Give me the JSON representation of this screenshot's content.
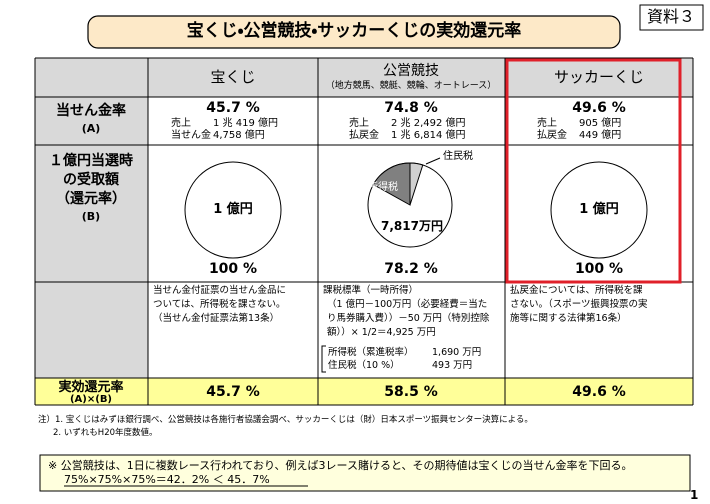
{
  "header": {
    "title": "宝くじ・公営競技・サッカーくじの実効還元率",
    "doc_label": "資料３"
  },
  "table": {
    "columns": [
      {
        "name": "宝くじ"
      },
      {
        "name": "公営競技",
        "sub": "（地方競馬、競艇、競輪、オートレース）"
      },
      {
        "name": "サッカーくじ"
      }
    ],
    "rate": {
      "label": "当せん金率",
      "sub": "(A)",
      "cells": [
        {
          "value": "45.7 %",
          "lines": [
            [
              "売上",
              "1 兆 419 億円"
            ],
            [
              "当せん金",
              "4,758 億円"
            ]
          ]
        },
        {
          "value": "74.8 %",
          "lines": [
            [
              "売上",
              "2 兆 2,492 億円"
            ],
            [
              "払戻金",
              "1 兆 6,814 億円"
            ]
          ]
        },
        {
          "value": "49.6 %",
          "lines": [
            [
              "売上",
              "905 億円"
            ],
            [
              "払戻金",
              "449 億円"
            ]
          ]
        }
      ]
    },
    "receive": {
      "label": [
        "１億円当選時",
        "の受取額",
        "（還元率）",
        "(B)"
      ],
      "cells": [
        {
          "circle": "1 億円",
          "value": "100 %"
        },
        {
          "income_tax": "所得税",
          "resident_tax": "住民税",
          "circle": "7,817万円",
          "value": "78.2 %"
        },
        {
          "circle": "1 億円",
          "value": "100 %"
        }
      ]
    },
    "notes": [
      {
        "lines": [
          "当せん金付証票の当せん金品に",
          "ついては、所得税を課さない。",
          "（当せん金付証票法第13条）"
        ]
      },
      {
        "lines": [
          "課税標準（一時所得）",
          "（1 億円－100万円（必要経費＝当た",
          "り馬券購入費））－50 万円（特別控除",
          "額））× 1/2＝4,925 万円"
        ],
        "taxes": [
          [
            "所得税（累進税率）",
            "1,690 万円"
          ],
          [
            "住民税（10 %）",
            "493 万円"
          ]
        ]
      },
      {
        "lines": [
          "払戻金については、所得税を課",
          "さない。（スポーツ振興投票の実",
          "施等に関する法律第16条）"
        ]
      }
    ],
    "effective": {
      "label": [
        "実効還元率",
        "(A)×(B)"
      ],
      "values": [
        "45.7 %",
        "58.5 %",
        "49.6 %"
      ]
    }
  },
  "footnotes": [
    "注）1.  宝くじはみずほ銀行調べ、公営競技は各施行者協議会調べ、サッカーくじは（財）日本スポーツ振興センター決算による。",
    "2.  いずれもH20年度数値。"
  ],
  "note": {
    "line1": "※  公営競技は、1日に複数レース行われており、例えば3レース賭けると、その期待値は宝くじの当せん金率を下回る。",
    "line2": "75%×75%×75%＝42．2%  ＜  45．7%"
  },
  "page_number": "1"
}
